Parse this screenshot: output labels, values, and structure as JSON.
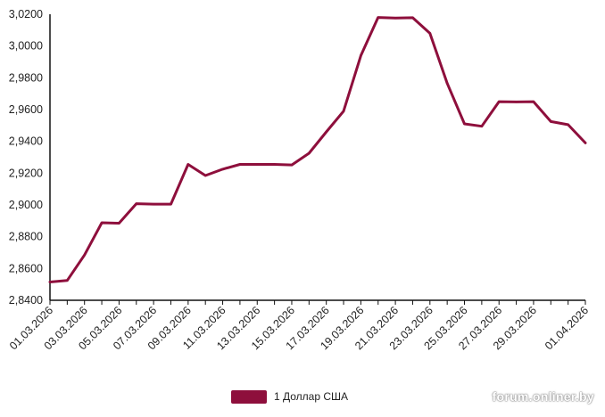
{
  "chart_data": {
    "type": "line",
    "x": [
      "01.03.2026",
      "02.03.2026",
      "03.03.2026",
      "04.03.2026",
      "05.03.2026",
      "06.03.2026",
      "07.03.2026",
      "08.03.2026",
      "09.03.2026",
      "10.03.2026",
      "11.03.2026",
      "12.03.2026",
      "13.03.2026",
      "14.03.2026",
      "15.03.2026",
      "16.03.2026",
      "17.03.2026",
      "18.03.2026",
      "19.03.2026",
      "20.03.2026",
      "21.03.2026",
      "22.03.2026",
      "23.03.2026",
      "24.03.2026",
      "25.03.2026",
      "26.03.2026",
      "27.03.2026",
      "28.03.2026",
      "29.03.2026",
      "30.03.2026",
      "31.03.2026",
      "01.04.2026"
    ],
    "x_tick_labels": [
      "01.03.2026",
      "03.03.2026",
      "05.03.2026",
      "07.03.2026",
      "09.03.2026",
      "11.03.2026",
      "13.03.2026",
      "15.03.2026",
      "17.03.2026",
      "19.03.2026",
      "21.03.2026",
      "23.03.2026",
      "25.03.2026",
      "27.03.2026",
      "29.03.2026",
      "01.04.2026"
    ],
    "y_tick_labels": [
      "2,8400",
      "2,8600",
      "2,8800",
      "2,9000",
      "2,9200",
      "2,9400",
      "2,9600",
      "2,9800",
      "3,0000",
      "3,0200"
    ],
    "ylim": [
      2.84,
      3.02
    ],
    "grid": false,
    "legend_position": "bottom",
    "series": [
      {
        "name": "1 Доллар США",
        "color": "#8e0f3c",
        "values": [
          2.8515,
          2.8525,
          2.8685,
          2.8888,
          2.8885,
          2.9008,
          2.9005,
          2.9005,
          2.9255,
          2.9185,
          2.9225,
          2.9255,
          2.9255,
          2.9255,
          2.9252,
          2.9325,
          2.946,
          2.959,
          2.994,
          3.018,
          3.0176,
          3.0178,
          3.008,
          2.9765,
          2.951,
          2.9495,
          2.965,
          2.9648,
          2.965,
          2.9525,
          2.9505,
          2.939
        ]
      }
    ]
  },
  "watermark": "forum.onliner.by"
}
